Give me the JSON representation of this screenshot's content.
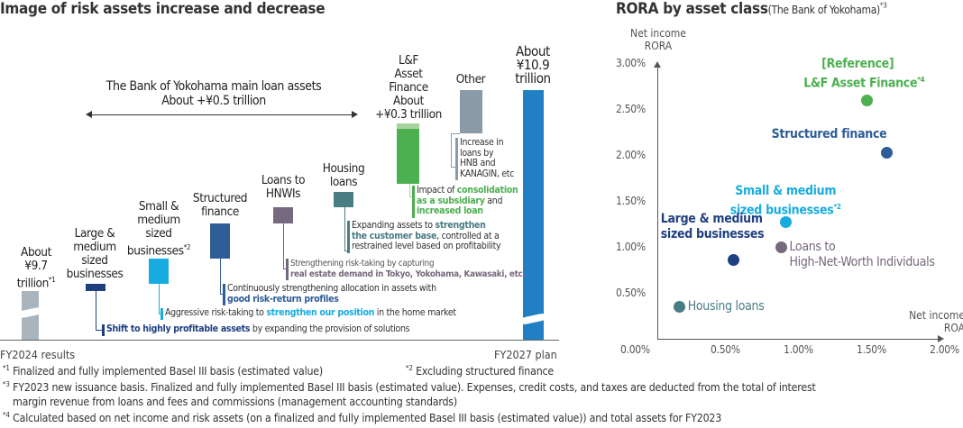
{
  "left": {
    "title": "Image of risk assets increase and decrease",
    "bracket": {
      "line1": "The Bank of Yokohama main loan assets",
      "line2": "About +¥0.5 trillion"
    },
    "start": {
      "l1": "About",
      "l2": "¥9.7",
      "l3": "trillion",
      "note": "*1",
      "xlabel": "FY2024 results"
    },
    "end": {
      "l1": "About",
      "l2": "¥10.9",
      "l3": "trillion",
      "xlabel": "FY2027 plan"
    },
    "steps": [
      {
        "label": [
          "Large &",
          "medium",
          "sized",
          "businesses"
        ],
        "color": "#1f3f80",
        "note": [
          {
            "t": "Shift to highly profitable assets",
            "b": true
          },
          {
            "t": " by expanding the provision of solutions"
          }
        ]
      },
      {
        "label": [
          "Small &",
          "medium",
          "sized",
          "businesses"
        ],
        "sup": "*2",
        "color": "#17ace0",
        "note": [
          {
            "t": "Aggressive risk-taking to "
          },
          {
            "t": "strengthen our position",
            "b": true
          },
          {
            "t": " in the home market"
          }
        ]
      },
      {
        "label": [
          "Structured",
          "finance"
        ],
        "color": "#2e5d98",
        "note": [
          {
            "t": "Continuously strengthening allocation in assets with"
          },
          {
            "t": "good risk-return profiles",
            "b": true,
            "br": true
          }
        ]
      },
      {
        "label": [
          "Loans to",
          "HNWIs"
        ],
        "color": "#76687d",
        "note": [
          {
            "t": "Strengthening risk-taking by capturing"
          },
          {
            "t": "real estate demand in Tokyo, Yokohama, Kawasaki, etc.",
            "b": true,
            "br": true
          }
        ]
      },
      {
        "label": [
          "Housing",
          "loans"
        ],
        "color": "#4a7c84",
        "note": [
          {
            "t": "Expanding assets to "
          },
          {
            "t": "strengthen",
            "b": true
          },
          {
            "t": "the customer base",
            "b": true,
            "br": true
          },
          {
            "t": ", controlled at a"
          },
          {
            "t": "restrained level based on profitability",
            "br": true
          }
        ]
      },
      {
        "label": [
          "L&F",
          "Asset",
          "Finance",
          "About",
          "+¥0.3 trillion"
        ],
        "color": "#4caf50",
        "note": [
          {
            "t": "Impact of "
          },
          {
            "t": "consolidation",
            "b": true
          },
          {
            "t": "as a subsidiary",
            "b": true,
            "br": true
          },
          {
            "t": " and"
          },
          {
            "t": "increased loan",
            "b": true,
            "br": true
          }
        ]
      },
      {
        "label": [
          "Other"
        ],
        "color": "#8a9ba7",
        "note": [
          {
            "t": "Increase in"
          },
          {
            "t": "loans by",
            "br": true
          },
          {
            "t": "HNB and",
            "br": true
          },
          {
            "t": "KANAGIN, etc",
            "br": true
          }
        ]
      }
    ]
  },
  "chart_data": {
    "type": "scatter",
    "title": "RORA by asset class",
    "subtitle": "(The Bank of Yokohama)",
    "title_note": "*3",
    "ylabel": [
      "Net income",
      "RORA"
    ],
    "xlabel": [
      "Net income",
      "ROA"
    ],
    "xlim": [
      0,
      2.0
    ],
    "ylim": [
      0,
      3.0
    ],
    "xticks": [
      "0.50%",
      "1.00%",
      "1.50%",
      "2.00%"
    ],
    "yticks": [
      "0.00%",
      "0.50%",
      "1.00%",
      "1.50%",
      "2.00%",
      "2.50%",
      "3.00%"
    ],
    "points": [
      {
        "name": [
          "[Reference]",
          "L&F Asset Finance"
        ],
        "sup": "*4",
        "x": 1.47,
        "y": 2.6,
        "color": "#4caf50"
      },
      {
        "name": [
          "Structured finance"
        ],
        "x": 1.61,
        "y": 2.03,
        "color": "#2e5d98"
      },
      {
        "name": [
          "Small & medium",
          "sized businesses"
        ],
        "sup": "*2",
        "x": 0.9,
        "y": 1.27,
        "color": "#17ace0"
      },
      {
        "name": [
          "Loans to",
          "High-Net-Worth Individuals"
        ],
        "x": 0.87,
        "y": 1.0,
        "color": "#76687d"
      },
      {
        "name": [
          "Large & medium",
          "sized businesses"
        ],
        "x": 0.53,
        "y": 0.86,
        "color": "#1f3f80"
      },
      {
        "name": [
          "Housing loans"
        ],
        "x": 0.15,
        "y": 0.35,
        "color": "#4a7c84"
      }
    ]
  },
  "footnotes": [
    {
      "mark": "*1",
      "text": " Finalized and fully implemented Basel III basis (estimated value)"
    },
    {
      "mark": "*2",
      "text": " Excluding structured finance"
    },
    {
      "mark": "*3",
      "text": " FY2023 new issuance basis. Finalized and fully implemented Basel III basis (estimated value). Expenses, credit costs, and taxes are deducted from the total of interest"
    },
    {
      "mark": "",
      "text": "margin revenue from loans and fees and commissions (management accounting standards)"
    },
    {
      "mark": "*4",
      "text": " Calculated based on net income and risk assets (on a finalized and fully implemented Basel III basis (estimated value)) and total assets for FY2023"
    }
  ]
}
